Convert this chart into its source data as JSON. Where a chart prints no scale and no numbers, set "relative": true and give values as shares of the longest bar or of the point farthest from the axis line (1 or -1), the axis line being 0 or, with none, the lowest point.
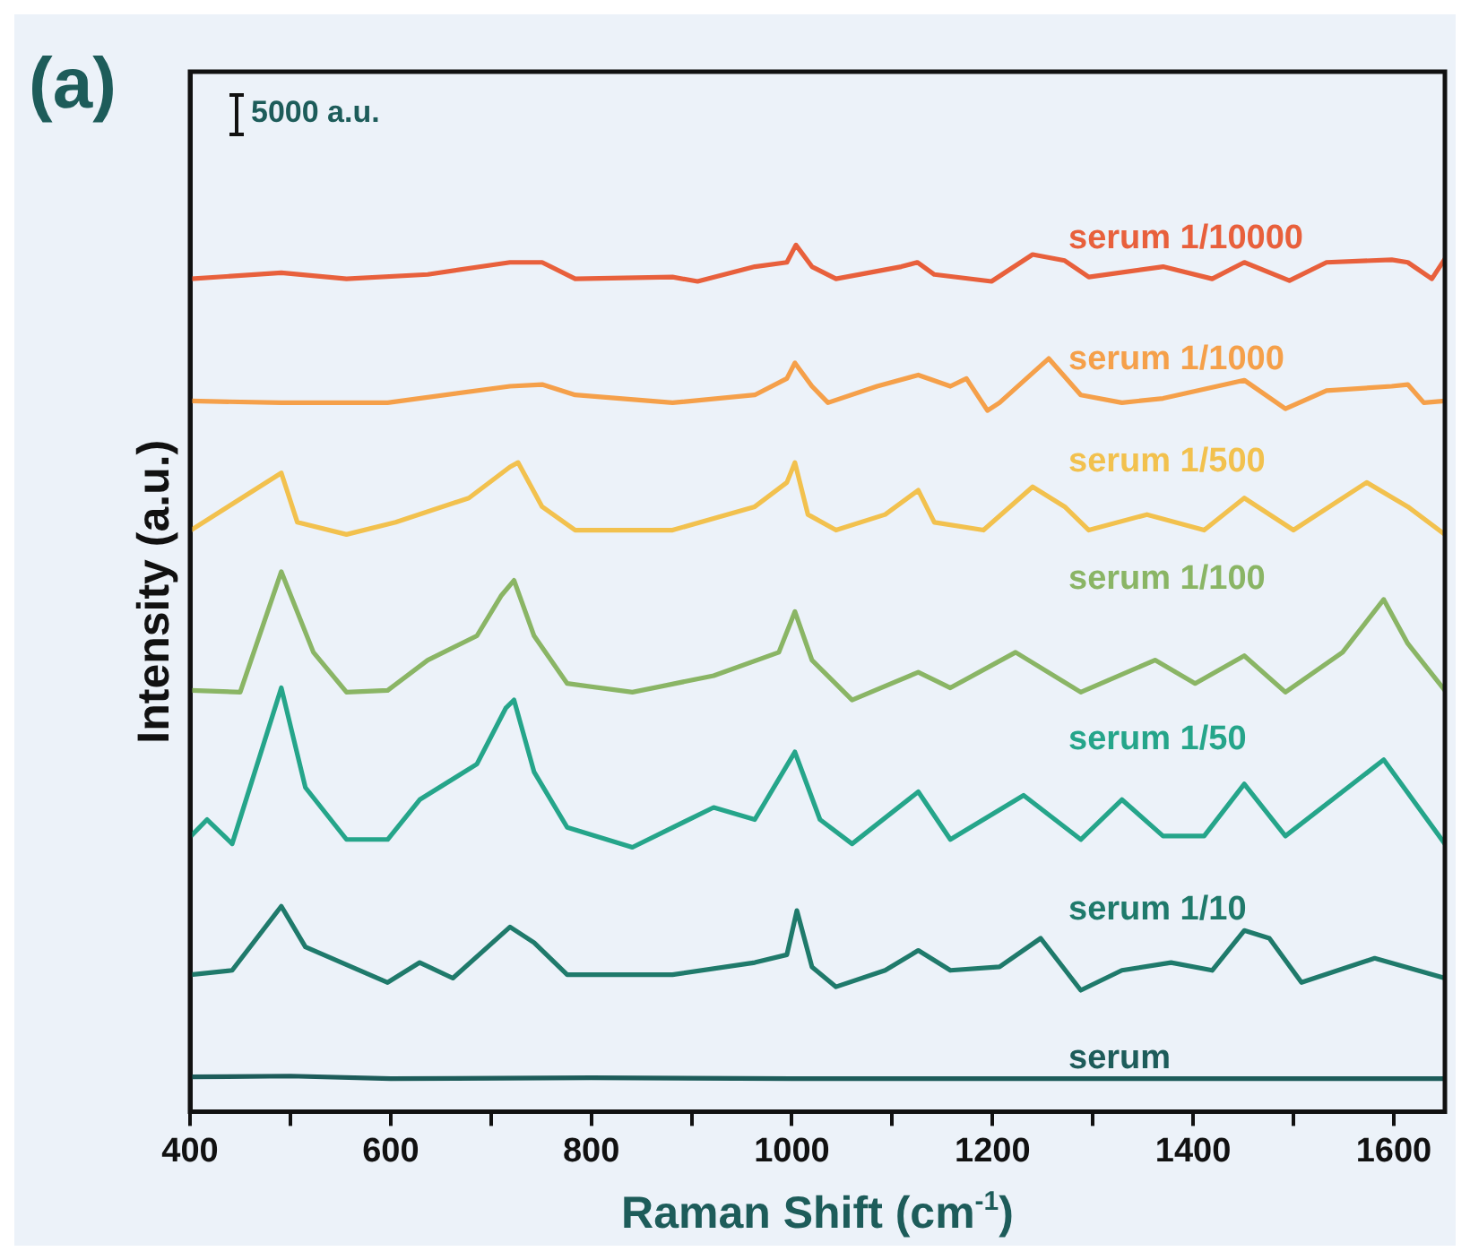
{
  "chart_data": {
    "type": "line",
    "title": "(a)",
    "xlabel": "Raman Shift (cm$^{-1}$)",
    "ylabel": "Intensity (a.u.)",
    "relative": true,
    "xlim": [
      400,
      1651
    ],
    "xticks": [
      400,
      {
        "value": 500,
        "label": null
      },
      600,
      {
        "value": 700,
        "label": null
      },
      800,
      {
        "value": 900,
        "label": null
      },
      1000,
      {
        "value": 1100,
        "label": null
      },
      1200,
      {
        "value": 1300,
        "label": null
      },
      1400,
      {
        "value": 1500,
        "label": null
      },
      1600
    ],
    "grid": false,
    "legend": false,
    "marker": "none",
    "line_style": "solid",
    "annotations": [
      "5000 a.u."
    ],
    "series": [
      {
        "name": "serum 1/10000",
        "color": "#e8603c",
        "x": [
          401,
          491,
          556,
          637,
          719,
          751,
          784,
          881,
          906,
          963,
          995,
          1004,
          1020,
          1044,
          1109,
          1125,
          1142,
          1199,
          1240,
          1272,
          1296,
          1370,
          1419,
          1451,
          1496,
          1533,
          1598,
          1614,
          1638,
          1651
        ],
        "values": [
          0.961,
          0.968,
          0.961,
          0.966,
          0.98,
          0.98,
          0.961,
          0.963,
          0.958,
          0.975,
          0.98,
          1.0,
          0.975,
          0.961,
          0.975,
          0.98,
          0.966,
          0.958,
          0.989,
          0.982,
          0.963,
          0.975,
          0.961,
          0.98,
          0.959,
          0.98,
          0.983,
          0.98,
          0.961,
          0.984
        ]
      },
      {
        "name": "serum 1/1000",
        "color": "#f5a04a",
        "x": [
          401,
          491,
          597,
          719,
          751,
          784,
          881,
          963,
          995,
          1003,
          1020,
          1036,
          1085,
          1126,
          1158,
          1174,
          1195,
          1207,
          1256,
          1288,
          1329,
          1370,
          1451,
          1492,
          1533,
          1598,
          1614,
          1630,
          1651
        ],
        "values": [
          0.82,
          0.818,
          0.818,
          0.837,
          0.839,
          0.827,
          0.818,
          0.827,
          0.846,
          0.864,
          0.837,
          0.818,
          0.837,
          0.85,
          0.837,
          0.846,
          0.809,
          0.818,
          0.869,
          0.827,
          0.818,
          0.823,
          0.844,
          0.811,
          0.832,
          0.837,
          0.839,
          0.818,
          0.82
        ]
      },
      {
        "name": "serum 1/500",
        "color": "#f2c14e",
        "x": [
          401,
          491,
          507,
          556,
          605,
          678,
          719,
          727,
          751,
          784,
          881,
          963,
          995,
          1003,
          1016,
          1044,
          1093,
          1126,
          1142,
          1191,
          1240,
          1272,
          1296,
          1354,
          1411,
          1451,
          1500,
          1573,
          1614,
          1651
        ],
        "values": [
          0.671,
          0.737,
          0.68,
          0.666,
          0.68,
          0.708,
          0.744,
          0.749,
          0.698,
          0.671,
          0.671,
          0.698,
          0.726,
          0.749,
          0.689,
          0.671,
          0.689,
          0.717,
          0.68,
          0.671,
          0.721,
          0.698,
          0.671,
          0.689,
          0.671,
          0.708,
          0.671,
          0.726,
          0.698,
          0.666
        ]
      },
      {
        "name": "serum 1/100",
        "color": "#8ab565",
        "x": [
          401,
          450,
          491,
          523,
          556,
          597,
          637,
          686,
          710,
          723,
          743,
          776,
          841,
          922,
          987,
          1003,
          1020,
          1060,
          1126,
          1158,
          1223,
          1288,
          1362,
          1402,
          1451,
          1492,
          1549,
          1590,
          1614,
          1651
        ],
        "values": [
          0.486,
          0.484,
          0.623,
          0.53,
          0.484,
          0.486,
          0.521,
          0.549,
          0.595,
          0.613,
          0.549,
          0.494,
          0.484,
          0.503,
          0.53,
          0.577,
          0.521,
          0.475,
          0.507,
          0.489,
          0.53,
          0.484,
          0.521,
          0.494,
          0.526,
          0.484,
          0.53,
          0.591,
          0.54,
          0.486
        ]
      },
      {
        "name": "serum 1/50",
        "color": "#25a58a",
        "x": [
          401,
          417,
          442,
          491,
          515,
          556,
          597,
          629,
          686,
          715,
          723,
          743,
          776,
          841,
          922,
          963,
          1003,
          1028,
          1060,
          1126,
          1158,
          1231,
          1288,
          1329,
          1370,
          1411,
          1451,
          1492,
          1590,
          1651
        ],
        "values": [
          0.318,
          0.337,
          0.309,
          0.489,
          0.374,
          0.314,
          0.314,
          0.36,
          0.401,
          0.466,
          0.475,
          0.392,
          0.328,
          0.305,
          0.351,
          0.337,
          0.415,
          0.337,
          0.309,
          0.369,
          0.314,
          0.365,
          0.314,
          0.36,
          0.318,
          0.318,
          0.378,
          0.318,
          0.406,
          0.309
        ]
      },
      {
        "name": "serum 1/10",
        "color": "#1f7a6b",
        "x": [
          401,
          442,
          491,
          515,
          597,
          629,
          662,
          719,
          743,
          776,
          881,
          963,
          995,
          1005,
          1020,
          1044,
          1093,
          1126,
          1158,
          1207,
          1248,
          1288,
          1329,
          1378,
          1419,
          1451,
          1476,
          1508,
          1581,
          1651
        ],
        "values": [
          0.158,
          0.163,
          0.237,
          0.19,
          0.149,
          0.172,
          0.154,
          0.213,
          0.195,
          0.158,
          0.158,
          0.172,
          0.181,
          0.232,
          0.167,
          0.144,
          0.163,
          0.186,
          0.163,
          0.167,
          0.2,
          0.14,
          0.163,
          0.172,
          0.163,
          0.209,
          0.2,
          0.149,
          0.177,
          0.154
        ]
      },
      {
        "name": "serum",
        "color": "#1d5c5a",
        "x": [
          401,
          500,
          600,
          800,
          1000,
          1200,
          1400,
          1651
        ],
        "values": [
          0.04,
          0.041,
          0.038,
          0.039,
          0.038,
          0.038,
          0.038,
          0.038
        ]
      }
    ]
  }
}
